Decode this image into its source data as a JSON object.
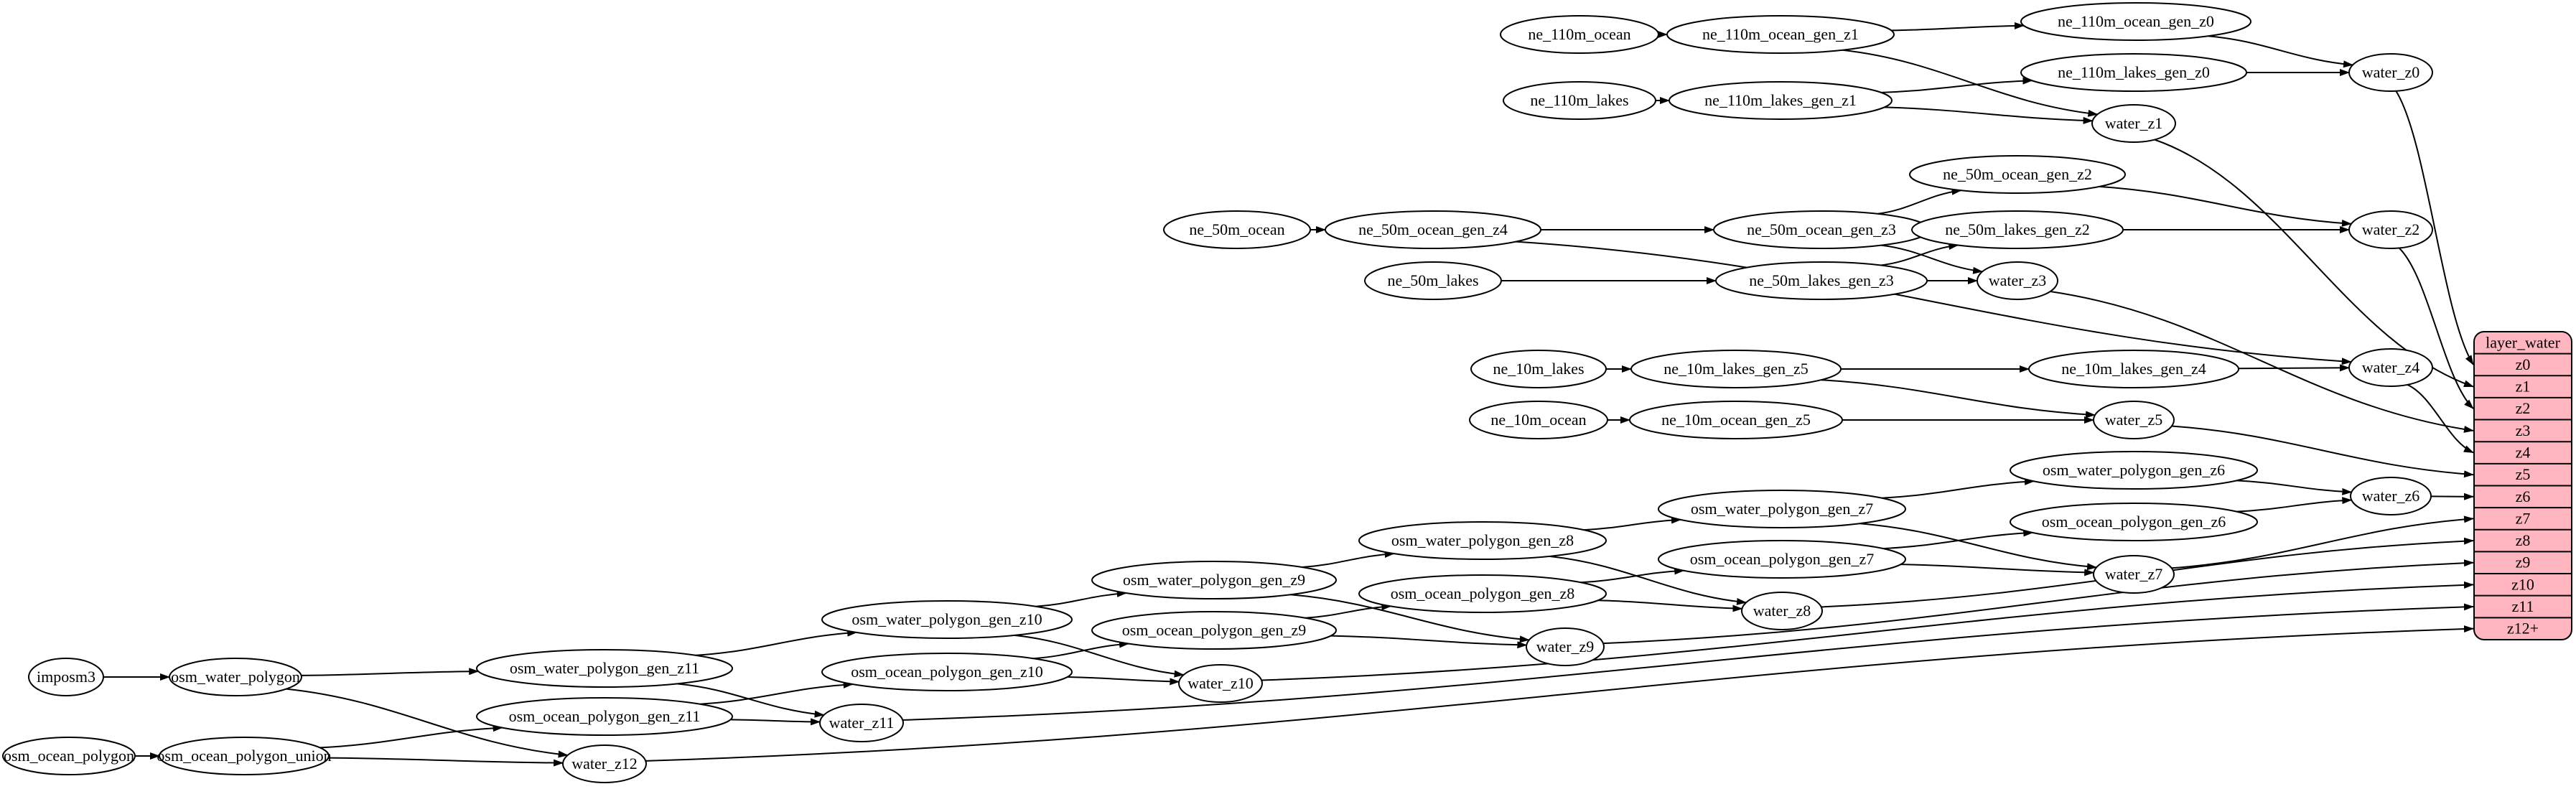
{
  "diagram": {
    "background": "#ffffff",
    "node_fill": "#ffffff",
    "node_stroke": "#000000",
    "edge_color": "#000000",
    "text_color": "#000000"
  },
  "nodes": [
    {
      "id": "ne_110m_ocean",
      "label": "ne_110m_ocean"
    },
    {
      "id": "ne_110m_ocean_gen_z1",
      "label": "ne_110m_ocean_gen_z1"
    },
    {
      "id": "ne_110m_ocean_gen_z0",
      "label": "ne_110m_ocean_gen_z0"
    },
    {
      "id": "ne_110m_lakes",
      "label": "ne_110m_lakes"
    },
    {
      "id": "ne_110m_lakes_gen_z1",
      "label": "ne_110m_lakes_gen_z1"
    },
    {
      "id": "ne_110m_lakes_gen_z0",
      "label": "ne_110m_lakes_gen_z0"
    },
    {
      "id": "water_z0",
      "label": "water_z0"
    },
    {
      "id": "water_z1",
      "label": "water_z1"
    },
    {
      "id": "ne_50m_ocean",
      "label": "ne_50m_ocean"
    },
    {
      "id": "ne_50m_ocean_gen_z4",
      "label": "ne_50m_ocean_gen_z4"
    },
    {
      "id": "ne_50m_ocean_gen_z3",
      "label": "ne_50m_ocean_gen_z3"
    },
    {
      "id": "ne_50m_ocean_gen_z2",
      "label": "ne_50m_ocean_gen_z2"
    },
    {
      "id": "ne_50m_lakes",
      "label": "ne_50m_lakes"
    },
    {
      "id": "ne_50m_lakes_gen_z3",
      "label": "ne_50m_lakes_gen_z3"
    },
    {
      "id": "ne_50m_lakes_gen_z2",
      "label": "ne_50m_lakes_gen_z2"
    },
    {
      "id": "water_z2",
      "label": "water_z2"
    },
    {
      "id": "water_z3",
      "label": "water_z3"
    },
    {
      "id": "ne_10m_lakes",
      "label": "ne_10m_lakes"
    },
    {
      "id": "ne_10m_lakes_gen_z5",
      "label": "ne_10m_lakes_gen_z5"
    },
    {
      "id": "ne_10m_lakes_gen_z4",
      "label": "ne_10m_lakes_gen_z4"
    },
    {
      "id": "ne_10m_ocean",
      "label": "ne_10m_ocean"
    },
    {
      "id": "ne_10m_ocean_gen_z5",
      "label": "ne_10m_ocean_gen_z5"
    },
    {
      "id": "water_z4",
      "label": "water_z4"
    },
    {
      "id": "water_z5",
      "label": "water_z5"
    },
    {
      "id": "osm_water_polygon_gen_z6",
      "label": "osm_water_polygon_gen_z6"
    },
    {
      "id": "osm_ocean_polygon_gen_z6",
      "label": "osm_ocean_polygon_gen_z6"
    },
    {
      "id": "water_z6",
      "label": "water_z6"
    },
    {
      "id": "osm_water_polygon_gen_z7",
      "label": "osm_water_polygon_gen_z7"
    },
    {
      "id": "osm_ocean_polygon_gen_z7",
      "label": "osm_ocean_polygon_gen_z7"
    },
    {
      "id": "water_z7",
      "label": "water_z7"
    },
    {
      "id": "osm_water_polygon_gen_z8",
      "label": "osm_water_polygon_gen_z8"
    },
    {
      "id": "osm_ocean_polygon_gen_z8",
      "label": "osm_ocean_polygon_gen_z8"
    },
    {
      "id": "water_z8",
      "label": "water_z8"
    },
    {
      "id": "osm_water_polygon_gen_z9",
      "label": "osm_water_polygon_gen_z9"
    },
    {
      "id": "osm_ocean_polygon_gen_z9",
      "label": "osm_ocean_polygon_gen_z9"
    },
    {
      "id": "water_z9",
      "label": "water_z9"
    },
    {
      "id": "osm_water_polygon_gen_z10",
      "label": "osm_water_polygon_gen_z10"
    },
    {
      "id": "osm_ocean_polygon_gen_z10",
      "label": "osm_ocean_polygon_gen_z10"
    },
    {
      "id": "water_z10",
      "label": "water_z10"
    },
    {
      "id": "osm_water_polygon_gen_z11",
      "label": "osm_water_polygon_gen_z11"
    },
    {
      "id": "osm_ocean_polygon_gen_z11",
      "label": "osm_ocean_polygon_gen_z11"
    },
    {
      "id": "water_z11",
      "label": "water_z11"
    },
    {
      "id": "water_z12",
      "label": "water_z12"
    },
    {
      "id": "imposm3",
      "label": "imposm3"
    },
    {
      "id": "osm_water_polygon",
      "label": "osm_water_polygon"
    },
    {
      "id": "osm_ocean_polygon",
      "label": "osm_ocean_polygon"
    },
    {
      "id": "osm_ocean_polygon_union",
      "label": "osm_ocean_polygon_union"
    }
  ],
  "edges": [
    [
      "ne_110m_ocean",
      "ne_110m_ocean_gen_z1"
    ],
    [
      "ne_110m_ocean_gen_z1",
      "ne_110m_ocean_gen_z0"
    ],
    [
      "ne_110m_ocean_gen_z1",
      "water_z1"
    ],
    [
      "ne_110m_ocean_gen_z0",
      "water_z0"
    ],
    [
      "ne_110m_lakes",
      "ne_110m_lakes_gen_z1"
    ],
    [
      "ne_110m_lakes_gen_z1",
      "ne_110m_lakes_gen_z0"
    ],
    [
      "ne_110m_lakes_gen_z1",
      "water_z1"
    ],
    [
      "ne_110m_lakes_gen_z0",
      "water_z0"
    ],
    [
      "ne_50m_ocean",
      "ne_50m_ocean_gen_z4"
    ],
    [
      "ne_50m_ocean_gen_z4",
      "ne_50m_ocean_gen_z3"
    ],
    [
      "ne_50m_ocean_gen_z4",
      "water_z4"
    ],
    [
      "ne_50m_ocean_gen_z3",
      "ne_50m_ocean_gen_z2"
    ],
    [
      "ne_50m_ocean_gen_z3",
      "water_z3"
    ],
    [
      "ne_50m_ocean_gen_z2",
      "water_z2"
    ],
    [
      "ne_50m_lakes",
      "ne_50m_lakes_gen_z3"
    ],
    [
      "ne_50m_lakes_gen_z3",
      "ne_50m_lakes_gen_z2"
    ],
    [
      "ne_50m_lakes_gen_z3",
      "water_z3"
    ],
    [
      "ne_50m_lakes_gen_z2",
      "water_z2"
    ],
    [
      "ne_10m_lakes",
      "ne_10m_lakes_gen_z5"
    ],
    [
      "ne_10m_lakes_gen_z5",
      "ne_10m_lakes_gen_z4"
    ],
    [
      "ne_10m_lakes_gen_z5",
      "water_z5"
    ],
    [
      "ne_10m_lakes_gen_z4",
      "water_z4"
    ],
    [
      "ne_10m_ocean",
      "ne_10m_ocean_gen_z5"
    ],
    [
      "ne_10m_ocean_gen_z5",
      "water_z5"
    ],
    [
      "imposm3",
      "osm_water_polygon"
    ],
    [
      "osm_water_polygon",
      "osm_water_polygon_gen_z11"
    ],
    [
      "osm_water_polygon",
      "water_z12"
    ],
    [
      "osm_ocean_polygon",
      "osm_ocean_polygon_union"
    ],
    [
      "osm_ocean_polygon_union",
      "osm_ocean_polygon_gen_z11"
    ],
    [
      "osm_ocean_polygon_union",
      "water_z12"
    ],
    [
      "osm_water_polygon_gen_z11",
      "osm_water_polygon_gen_z10"
    ],
    [
      "osm_water_polygon_gen_z11",
      "water_z11"
    ],
    [
      "osm_ocean_polygon_gen_z11",
      "osm_ocean_polygon_gen_z10"
    ],
    [
      "osm_ocean_polygon_gen_z11",
      "water_z11"
    ],
    [
      "osm_water_polygon_gen_z10",
      "osm_water_polygon_gen_z9"
    ],
    [
      "osm_water_polygon_gen_z10",
      "water_z10"
    ],
    [
      "osm_ocean_polygon_gen_z10",
      "osm_ocean_polygon_gen_z9"
    ],
    [
      "osm_ocean_polygon_gen_z10",
      "water_z10"
    ],
    [
      "osm_water_polygon_gen_z9",
      "osm_water_polygon_gen_z8"
    ],
    [
      "osm_water_polygon_gen_z9",
      "water_z9"
    ],
    [
      "osm_ocean_polygon_gen_z9",
      "osm_ocean_polygon_gen_z8"
    ],
    [
      "osm_ocean_polygon_gen_z9",
      "water_z9"
    ],
    [
      "osm_water_polygon_gen_z8",
      "osm_water_polygon_gen_z7"
    ],
    [
      "osm_water_polygon_gen_z8",
      "water_z8"
    ],
    [
      "osm_ocean_polygon_gen_z8",
      "osm_ocean_polygon_gen_z7"
    ],
    [
      "osm_ocean_polygon_gen_z8",
      "water_z8"
    ],
    [
      "osm_water_polygon_gen_z7",
      "osm_water_polygon_gen_z6"
    ],
    [
      "osm_water_polygon_gen_z7",
      "water_z7"
    ],
    [
      "osm_ocean_polygon_gen_z7",
      "osm_ocean_polygon_gen_z6"
    ],
    [
      "osm_ocean_polygon_gen_z7",
      "water_z7"
    ],
    [
      "osm_water_polygon_gen_z6",
      "water_z6"
    ],
    [
      "osm_ocean_polygon_gen_z6",
      "water_z6"
    ],
    [
      "water_z0",
      "layer_water:z0"
    ],
    [
      "water_z1",
      "layer_water:z1"
    ],
    [
      "water_z2",
      "layer_water:z2"
    ],
    [
      "water_z3",
      "layer_water:z3"
    ],
    [
      "water_z4",
      "layer_water:z4"
    ],
    [
      "water_z5",
      "layer_water:z5"
    ],
    [
      "water_z6",
      "layer_water:z6"
    ],
    [
      "water_z7",
      "layer_water:z7"
    ],
    [
      "water_z8",
      "layer_water:z8"
    ],
    [
      "water_z9",
      "layer_water:z9"
    ],
    [
      "water_z10",
      "layer_water:z10"
    ],
    [
      "water_z11",
      "layer_water:z11"
    ],
    [
      "water_z12",
      "layer_water:z12+"
    ]
  ],
  "table": {
    "title": "layer_water",
    "rows": [
      "z0",
      "z1",
      "z2",
      "z3",
      "z4",
      "z5",
      "z6",
      "z7",
      "z8",
      "z9",
      "z10",
      "z11",
      "z12+"
    ],
    "fill": "#ffb6c1",
    "stroke": "#000000"
  }
}
